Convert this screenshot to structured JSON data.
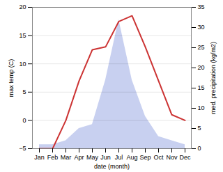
{
  "chart_data": {
    "type": "line",
    "xlabel": "date (month)",
    "ylabel": "max temp (C)",
    "y2label": "med. precipitation (kg/m2)",
    "categories": [
      "Jan",
      "Feb",
      "Mar",
      "Apr",
      "May",
      "Jun",
      "Jul",
      "Aug",
      "Sep",
      "Oct",
      "Nov",
      "Dec"
    ],
    "series": [
      {
        "type": "area",
        "axis": "y2",
        "color": "#c8d0f0",
        "values": [
          1,
          1,
          2,
          5,
          6,
          17,
          32,
          17,
          8,
          3,
          2,
          1
        ]
      },
      {
        "type": "line",
        "color": "#cc3333",
        "values": [
          -5,
          -5,
          0,
          7,
          12.5,
          13,
          17.5,
          18.5,
          13,
          7,
          1,
          0
        ]
      }
    ],
    "ylim": [
      -5,
      20
    ],
    "yticks": [
      -5,
      0,
      5,
      10,
      15,
      20
    ],
    "y2lim": [
      0,
      35
    ],
    "y2ticks": [
      0,
      5,
      10,
      15,
      20,
      25,
      30,
      35
    ],
    "grid": true
  }
}
